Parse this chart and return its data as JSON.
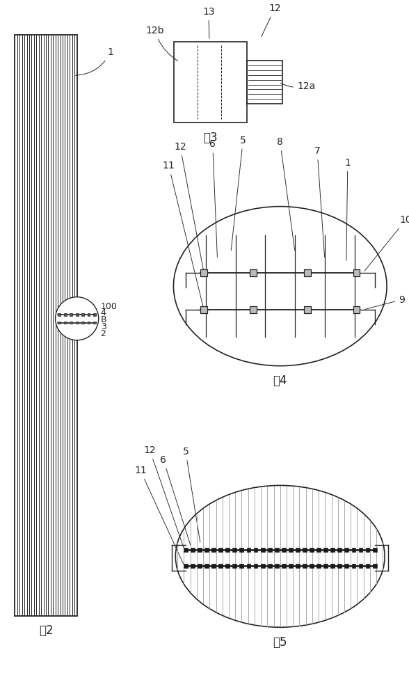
{
  "bg_color": "#ffffff",
  "line_color": "#222222",
  "fig2_label": "图2",
  "fig3_label": "图3",
  "fig4_label": "图4",
  "fig5_label": "图5",
  "label_fontsize": 12,
  "annot_fontsize": 10
}
